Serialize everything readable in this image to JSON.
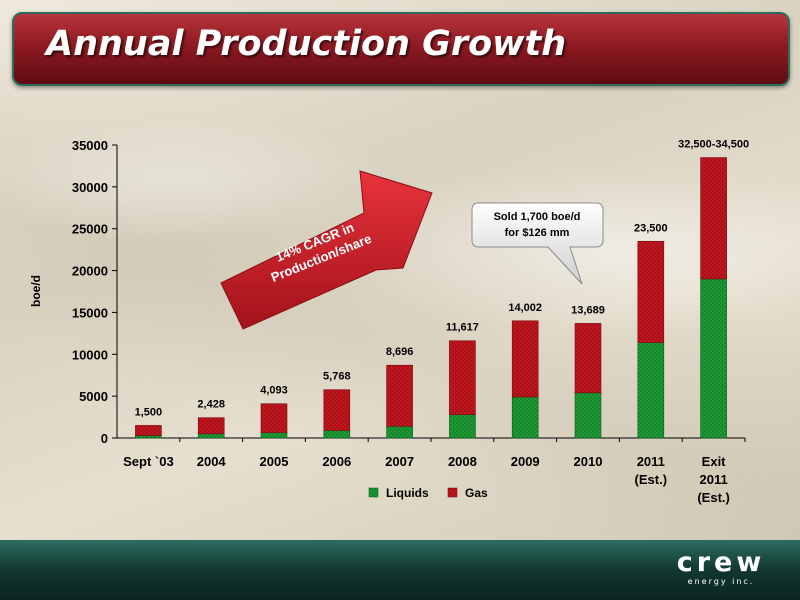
{
  "title": "Annual Production Growth",
  "logo": {
    "word": "crew",
    "sub": "energy inc."
  },
  "colors": {
    "liquids": "#1e9a35",
    "gas": "#c2161f",
    "title_bar": "#8e1a22",
    "footer": "#11372f"
  },
  "annotations": {
    "arrow_line1": "14% CAGR in",
    "arrow_line2": "Production/share",
    "callout_line1": "Sold 1,700 boe/d",
    "callout_line2": "for $126 mm"
  },
  "chart_data": {
    "type": "bar",
    "stacked": true,
    "ylabel": "boe/d",
    "ylim": [
      0,
      35000
    ],
    "yticks": [
      0,
      5000,
      10000,
      15000,
      20000,
      25000,
      30000,
      35000
    ],
    "categories": [
      [
        "Sept `03"
      ],
      [
        "2004"
      ],
      [
        "2005"
      ],
      [
        "2006"
      ],
      [
        "2007"
      ],
      [
        "2008"
      ],
      [
        "2009"
      ],
      [
        "2010"
      ],
      [
        "2011",
        "(Est.)"
      ],
      [
        "Exit",
        "2011",
        "(Est.)"
      ]
    ],
    "series": [
      {
        "name": "Liquids",
        "values": [
          300,
          500,
          650,
          900,
          1400,
          2800,
          4900,
          5400,
          11400,
          19000
        ]
      },
      {
        "name": "Gas",
        "values": [
          1200,
          1928,
          3443,
          4868,
          7296,
          8817,
          9102,
          8289,
          12100,
          14500
        ]
      }
    ],
    "data_labels": [
      "1,500",
      "2,428",
      "4,093",
      "5,768",
      "8,696",
      "11,617",
      "14,002",
      "13,689",
      "23,500",
      "32,500-34,500"
    ],
    "legend": "bottom",
    "grid": false
  }
}
